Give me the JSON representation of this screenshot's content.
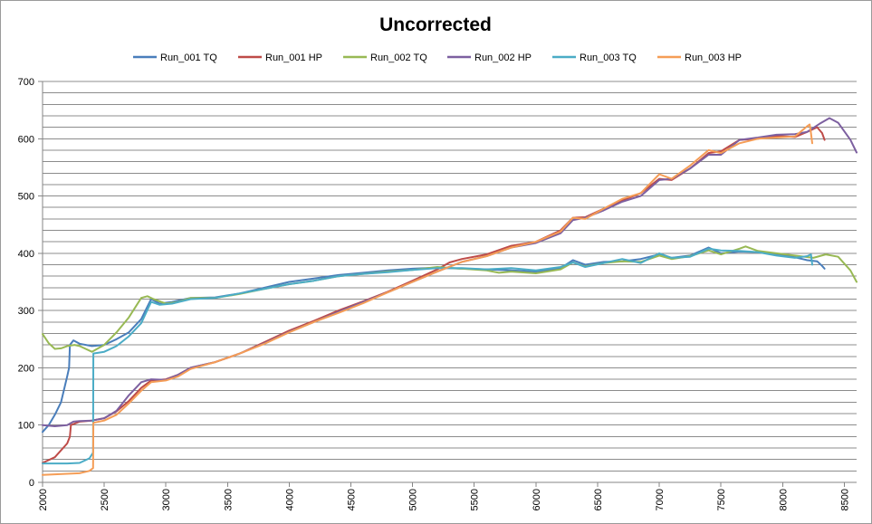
{
  "chart_data": {
    "type": "line",
    "title": "Uncorrected",
    "xlabel": "",
    "ylabel": "",
    "xlim": [
      2000,
      8600
    ],
    "ylim": [
      0,
      700
    ],
    "grid": true,
    "legend_position": "top",
    "y_ticks": [
      "0",
      "100",
      "200",
      "300",
      "400",
      "500",
      "600",
      "700"
    ],
    "x_ticks": [
      "2000",
      "2500",
      "3000",
      "3500",
      "4000",
      "4500",
      "5000",
      "5500",
      "6000",
      "6500",
      "7000",
      "7500",
      "8000",
      "8500"
    ],
    "series": [
      {
        "name": "Run_001 TQ",
        "color": "#4a7ebb",
        "points": [
          [
            2000,
            88
          ],
          [
            2050,
            100
          ],
          [
            2100,
            118
          ],
          [
            2150,
            140
          ],
          [
            2200,
            185
          ],
          [
            2215,
            200
          ],
          [
            2222,
            240
          ],
          [
            2250,
            248
          ],
          [
            2300,
            242
          ],
          [
            2400,
            238
          ],
          [
            2500,
            240
          ],
          [
            2600,
            250
          ],
          [
            2700,
            262
          ],
          [
            2800,
            285
          ],
          [
            2880,
            320
          ],
          [
            2950,
            312
          ],
          [
            3050,
            315
          ],
          [
            3200,
            322
          ],
          [
            3400,
            323
          ],
          [
            3600,
            330
          ],
          [
            3800,
            340
          ],
          [
            4000,
            350
          ],
          [
            4200,
            356
          ],
          [
            4400,
            362
          ],
          [
            4600,
            366
          ],
          [
            4800,
            370
          ],
          [
            5000,
            373
          ],
          [
            5200,
            375
          ],
          [
            5400,
            373
          ],
          [
            5600,
            372
          ],
          [
            5800,
            370
          ],
          [
            6000,
            368
          ],
          [
            6200,
            374
          ],
          [
            6300,
            388
          ],
          [
            6400,
            380
          ],
          [
            6550,
            385
          ],
          [
            6700,
            386
          ],
          [
            6850,
            390
          ],
          [
            7000,
            398
          ],
          [
            7100,
            392
          ],
          [
            7250,
            396
          ],
          [
            7400,
            410
          ],
          [
            7500,
            400
          ],
          [
            7650,
            403
          ],
          [
            7800,
            402
          ],
          [
            7950,
            398
          ],
          [
            8100,
            393
          ],
          [
            8200,
            388
          ],
          [
            8280,
            386
          ],
          [
            8320,
            378
          ],
          [
            8340,
            373
          ]
        ]
      },
      {
        "name": "Run_001 HP",
        "color": "#be4b48",
        "points": [
          [
            2000,
            34
          ],
          [
            2100,
            44
          ],
          [
            2200,
            68
          ],
          [
            2222,
            80
          ],
          [
            2230,
            100
          ],
          [
            2300,
            106
          ],
          [
            2400,
            108
          ],
          [
            2500,
            112
          ],
          [
            2600,
            124
          ],
          [
            2700,
            142
          ],
          [
            2800,
            165
          ],
          [
            2880,
            178
          ],
          [
            3000,
            180
          ],
          [
            3100,
            188
          ],
          [
            3200,
            200
          ],
          [
            3400,
            210
          ],
          [
            3600,
            225
          ],
          [
            3800,
            245
          ],
          [
            4000,
            265
          ],
          [
            4200,
            282
          ],
          [
            4400,
            300
          ],
          [
            4600,
            316
          ],
          [
            4800,
            333
          ],
          [
            5000,
            352
          ],
          [
            5200,
            372
          ],
          [
            5300,
            384
          ],
          [
            5400,
            390
          ],
          [
            5600,
            398
          ],
          [
            5800,
            413
          ],
          [
            6000,
            420
          ],
          [
            6200,
            440
          ],
          [
            6300,
            462
          ],
          [
            6400,
            463
          ],
          [
            6550,
            478
          ],
          [
            6700,
            492
          ],
          [
            6850,
            505
          ],
          [
            7000,
            530
          ],
          [
            7100,
            528
          ],
          [
            7250,
            548
          ],
          [
            7400,
            575
          ],
          [
            7500,
            578
          ],
          [
            7650,
            598
          ],
          [
            7800,
            600
          ],
          [
            7950,
            605
          ],
          [
            8100,
            603
          ],
          [
            8200,
            612
          ],
          [
            8280,
            620
          ],
          [
            8320,
            610
          ],
          [
            8340,
            598
          ]
        ]
      },
      {
        "name": "Run_002 TQ",
        "color": "#98b954",
        "points": [
          [
            2000,
            259
          ],
          [
            2050,
            243
          ],
          [
            2100,
            233
          ],
          [
            2150,
            234
          ],
          [
            2200,
            238
          ],
          [
            2260,
            240
          ],
          [
            2300,
            238
          ],
          [
            2400,
            228
          ],
          [
            2500,
            240
          ],
          [
            2600,
            262
          ],
          [
            2700,
            288
          ],
          [
            2800,
            322
          ],
          [
            2850,
            325
          ],
          [
            2900,
            320
          ],
          [
            3000,
            312
          ],
          [
            3100,
            315
          ],
          [
            3200,
            322
          ],
          [
            3400,
            322
          ],
          [
            3600,
            329
          ],
          [
            3800,
            338
          ],
          [
            4000,
            346
          ],
          [
            4200,
            352
          ],
          [
            4400,
            360
          ],
          [
            4600,
            364
          ],
          [
            4800,
            368
          ],
          [
            5000,
            371
          ],
          [
            5200,
            376
          ],
          [
            5400,
            373
          ],
          [
            5600,
            370
          ],
          [
            5700,
            366
          ],
          [
            5800,
            368
          ],
          [
            6000,
            365
          ],
          [
            6200,
            372
          ],
          [
            6300,
            384
          ],
          [
            6400,
            377
          ],
          [
            6550,
            383
          ],
          [
            6700,
            386
          ],
          [
            6850,
            385
          ],
          [
            7000,
            396
          ],
          [
            7100,
            390
          ],
          [
            7250,
            395
          ],
          [
            7400,
            405
          ],
          [
            7500,
            398
          ],
          [
            7650,
            408
          ],
          [
            7700,
            412
          ],
          [
            7800,
            404
          ],
          [
            7950,
            400
          ],
          [
            8100,
            396
          ],
          [
            8250,
            392
          ],
          [
            8350,
            398
          ],
          [
            8450,
            394
          ],
          [
            8550,
            370
          ],
          [
            8600,
            350
          ]
        ]
      },
      {
        "name": "Run_002 HP",
        "color": "#7d60a0",
        "points": [
          [
            2000,
            100
          ],
          [
            2100,
            98
          ],
          [
            2200,
            100
          ],
          [
            2250,
            106
          ],
          [
            2300,
            107
          ],
          [
            2400,
            108
          ],
          [
            2500,
            112
          ],
          [
            2600,
            125
          ],
          [
            2700,
            152
          ],
          [
            2800,
            175
          ],
          [
            2880,
            180
          ],
          [
            3000,
            179
          ],
          [
            3100,
            188
          ],
          [
            3200,
            200
          ],
          [
            3400,
            210
          ],
          [
            3600,
            225
          ],
          [
            3800,
            243
          ],
          [
            4000,
            263
          ],
          [
            4200,
            280
          ],
          [
            4400,
            298
          ],
          [
            4600,
            315
          ],
          [
            4800,
            332
          ],
          [
            5000,
            350
          ],
          [
            5200,
            368
          ],
          [
            5400,
            385
          ],
          [
            5600,
            395
          ],
          [
            5800,
            410
          ],
          [
            6000,
            418
          ],
          [
            6200,
            435
          ],
          [
            6300,
            458
          ],
          [
            6400,
            462
          ],
          [
            6550,
            475
          ],
          [
            6700,
            490
          ],
          [
            6850,
            500
          ],
          [
            7000,
            528
          ],
          [
            7100,
            530
          ],
          [
            7250,
            548
          ],
          [
            7400,
            572
          ],
          [
            7500,
            572
          ],
          [
            7650,
            598
          ],
          [
            7800,
            602
          ],
          [
            7950,
            607
          ],
          [
            8100,
            608
          ],
          [
            8200,
            612
          ],
          [
            8300,
            626
          ],
          [
            8380,
            636
          ],
          [
            8450,
            628
          ],
          [
            8550,
            598
          ],
          [
            8600,
            576
          ]
        ]
      },
      {
        "name": "Run_003 TQ",
        "color": "#4bacc6",
        "points": [
          [
            2000,
            33
          ],
          [
            2100,
            33
          ],
          [
            2200,
            33
          ],
          [
            2300,
            34
          ],
          [
            2380,
            42
          ],
          [
            2410,
            52
          ],
          [
            2412,
            225
          ],
          [
            2500,
            228
          ],
          [
            2600,
            238
          ],
          [
            2700,
            255
          ],
          [
            2800,
            278
          ],
          [
            2880,
            315
          ],
          [
            2950,
            310
          ],
          [
            3050,
            312
          ],
          [
            3200,
            320
          ],
          [
            3400,
            322
          ],
          [
            3600,
            330
          ],
          [
            3800,
            338
          ],
          [
            4000,
            346
          ],
          [
            4200,
            352
          ],
          [
            4400,
            360
          ],
          [
            4600,
            364
          ],
          [
            4800,
            367
          ],
          [
            5000,
            371
          ],
          [
            5200,
            374
          ],
          [
            5400,
            374
          ],
          [
            5600,
            372
          ],
          [
            5800,
            374
          ],
          [
            6000,
            370
          ],
          [
            6200,
            376
          ],
          [
            6300,
            384
          ],
          [
            6400,
            376
          ],
          [
            6550,
            383
          ],
          [
            6700,
            390
          ],
          [
            6850,
            383
          ],
          [
            7000,
            400
          ],
          [
            7100,
            392
          ],
          [
            7250,
            394
          ],
          [
            7400,
            408
          ],
          [
            7500,
            405
          ],
          [
            7650,
            404
          ],
          [
            7800,
            402
          ],
          [
            7950,
            396
          ],
          [
            8100,
            392
          ],
          [
            8200,
            395
          ],
          [
            8230,
            398
          ],
          [
            8240,
            380
          ]
        ]
      },
      {
        "name": "Run_003 HP",
        "color": "#f59d56",
        "points": [
          [
            2000,
            13
          ],
          [
            2100,
            14
          ],
          [
            2200,
            15
          ],
          [
            2300,
            16
          ],
          [
            2380,
            20
          ],
          [
            2410,
            25
          ],
          [
            2412,
            104
          ],
          [
            2500,
            108
          ],
          [
            2600,
            118
          ],
          [
            2700,
            138
          ],
          [
            2800,
            160
          ],
          [
            2880,
            175
          ],
          [
            3000,
            178
          ],
          [
            3100,
            185
          ],
          [
            3200,
            198
          ],
          [
            3400,
            210
          ],
          [
            3600,
            225
          ],
          [
            3800,
            242
          ],
          [
            4000,
            262
          ],
          [
            4200,
            280
          ],
          [
            4400,
            296
          ],
          [
            4600,
            313
          ],
          [
            4800,
            332
          ],
          [
            5000,
            350
          ],
          [
            5200,
            368
          ],
          [
            5400,
            385
          ],
          [
            5600,
            395
          ],
          [
            5800,
            410
          ],
          [
            6000,
            420
          ],
          [
            6200,
            438
          ],
          [
            6300,
            462
          ],
          [
            6400,
            460
          ],
          [
            6550,
            478
          ],
          [
            6700,
            495
          ],
          [
            6850,
            505
          ],
          [
            7000,
            538
          ],
          [
            7100,
            530
          ],
          [
            7250,
            553
          ],
          [
            7400,
            580
          ],
          [
            7500,
            575
          ],
          [
            7650,
            592
          ],
          [
            7800,
            600
          ],
          [
            7950,
            602
          ],
          [
            8100,
            604
          ],
          [
            8200,
            622
          ],
          [
            8220,
            625
          ],
          [
            8230,
            610
          ],
          [
            8240,
            592
          ]
        ]
      }
    ]
  }
}
